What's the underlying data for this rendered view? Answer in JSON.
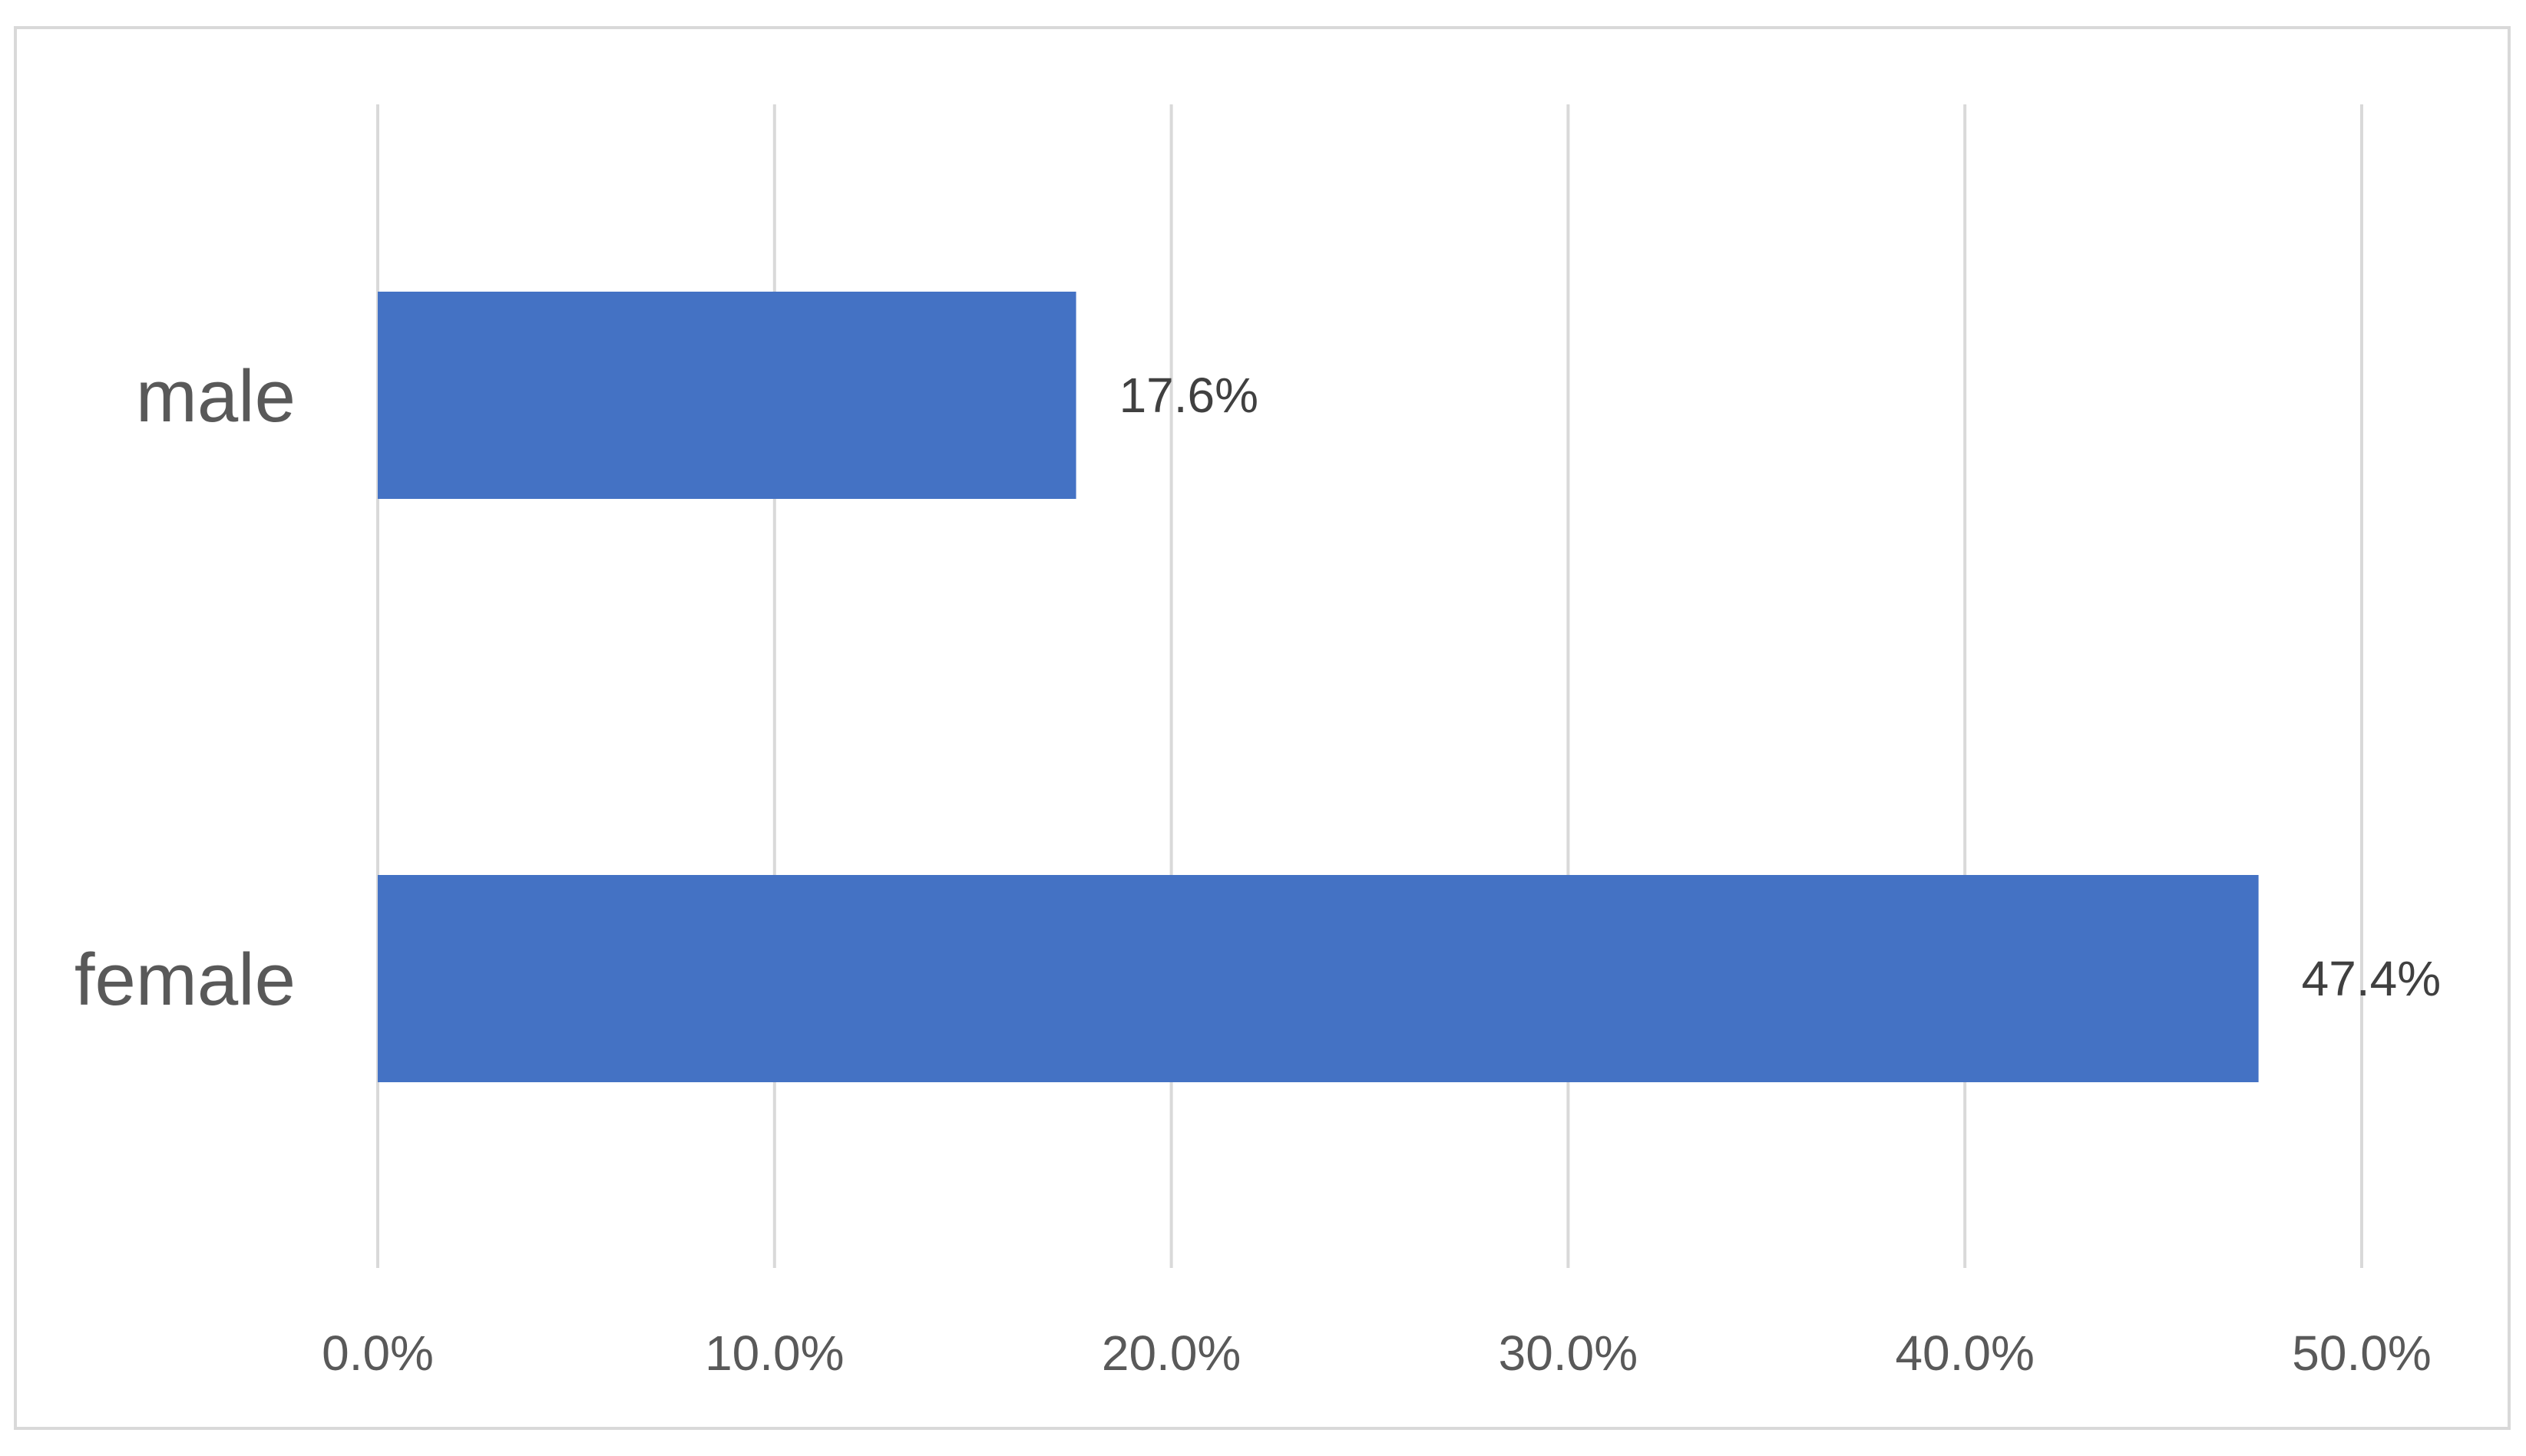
{
  "chart_data": {
    "type": "bar",
    "orientation": "horizontal",
    "categories": [
      "male",
      "female"
    ],
    "values": [
      17.6,
      47.4
    ],
    "data_labels": [
      "17.6%",
      "47.4%"
    ],
    "xlim": [
      0,
      50
    ],
    "x_ticks": [
      0,
      10,
      20,
      30,
      40,
      50
    ],
    "x_tick_labels": [
      "0.0%",
      "10.0%",
      "20.0%",
      "30.0%",
      "40.0%",
      "50.0%"
    ],
    "title": "",
    "xlabel": "",
    "ylabel": "",
    "grid": "vertical",
    "legend": "none",
    "bar_color": "#4472c4",
    "grid_color": "#d9d9d9",
    "text_color": "#595959"
  }
}
